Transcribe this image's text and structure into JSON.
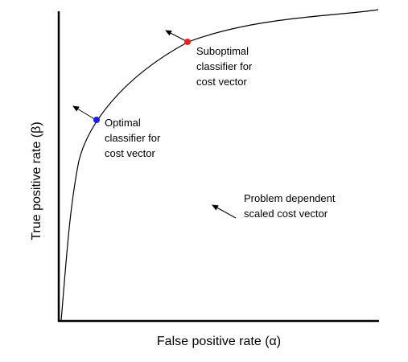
{
  "axes": {
    "x_label": "False positive rate (α)",
    "y_label": "True positive rate (β)"
  },
  "annotations": {
    "optimal": [
      "Optimal",
      "classifier for",
      "cost vector"
    ],
    "suboptimal": [
      "Suboptimal",
      "classifier for",
      "cost vector"
    ],
    "cost_vector": [
      "Problem dependent",
      "scaled cost vector"
    ]
  },
  "points": {
    "optimal_color": "#1a1aff",
    "suboptimal_color": "#ff1a1a"
  },
  "colors": {
    "curve": "#000000",
    "axes": "#000000"
  }
}
